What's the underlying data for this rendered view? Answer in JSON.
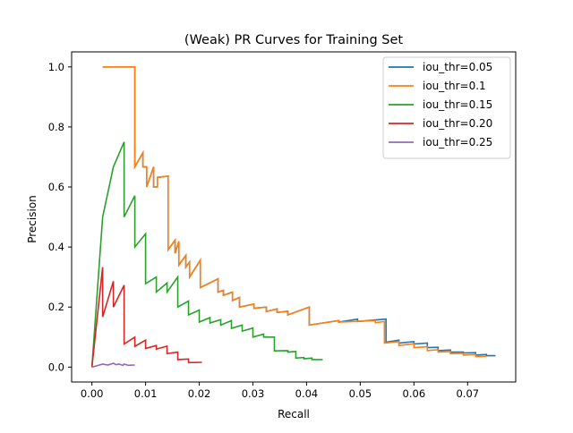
{
  "chart_data": {
    "type": "line",
    "title": "(Weak) PR Curves for Training Set",
    "xlabel": "Recall",
    "ylabel": "Precision",
    "xlim": [
      -0.00378,
      0.07896
    ],
    "ylim": [
      -0.0496,
      1.05
    ],
    "xticks": [
      0.0,
      0.01,
      0.02,
      0.03,
      0.04,
      0.05,
      0.06,
      0.07
    ],
    "xtick_labels": [
      "0.00",
      "0.01",
      "0.02",
      "0.03",
      "0.04",
      "0.05",
      "0.06",
      "0.07"
    ],
    "yticks": [
      0.0,
      0.2,
      0.4,
      0.6,
      0.8,
      1.0
    ],
    "ytick_labels": [
      "0.0",
      "0.2",
      "0.4",
      "0.6",
      "0.8",
      "1.0"
    ],
    "grid": false,
    "legend": "upper-right",
    "series": [
      {
        "name": "iou_thr=0.05",
        "color": "#1f77b4",
        "x": [
          0.002,
          0.008,
          0.008,
          0.0095,
          0.0095,
          0.0102,
          0.0102,
          0.0115,
          0.0115,
          0.0122,
          0.0122,
          0.0142,
          0.0142,
          0.0155,
          0.0155,
          0.0162,
          0.0162,
          0.0175,
          0.0175,
          0.0182,
          0.0182,
          0.0202,
          0.0202,
          0.0235,
          0.0235,
          0.0245,
          0.0245,
          0.0262,
          0.0262,
          0.0275,
          0.0275,
          0.0302,
          0.0302,
          0.0325,
          0.0325,
          0.0345,
          0.0345,
          0.0365,
          0.0365,
          0.0405,
          0.0405,
          0.046,
          0.046,
          0.0495,
          0.0495,
          0.0548,
          0.0548,
          0.0548,
          0.0548,
          0.0572,
          0.0572,
          0.06,
          0.06,
          0.0625,
          0.0625,
          0.0645,
          0.0645,
          0.0668,
          0.0668,
          0.0692,
          0.0692,
          0.0715,
          0.0715,
          0.0735,
          0.0735,
          0.0752
        ],
        "y": [
          1.0,
          1.0,
          0.667,
          0.714,
          0.667,
          0.667,
          0.6,
          0.667,
          0.6,
          0.6,
          0.632,
          0.636,
          0.391,
          0.423,
          0.379,
          0.419,
          0.34,
          0.372,
          0.333,
          0.35,
          0.3,
          0.356,
          0.265,
          0.294,
          0.25,
          0.256,
          0.239,
          0.25,
          0.222,
          0.232,
          0.2,
          0.21,
          0.196,
          0.2,
          0.185,
          0.194,
          0.182,
          0.186,
          0.174,
          0.2,
          0.14,
          0.155,
          0.15,
          0.16,
          0.152,
          0.16,
          0.16,
          0.16,
          0.083,
          0.09,
          0.08,
          0.085,
          0.077,
          0.08,
          0.065,
          0.066,
          0.055,
          0.057,
          0.05,
          0.05,
          0.047,
          0.048,
          0.04,
          0.042,
          0.038,
          0.038
        ]
      },
      {
        "name": "iou_thr=0.1",
        "color": "#ff7f0e",
        "x": [
          0.002,
          0.008,
          0.008,
          0.0095,
          0.0095,
          0.0102,
          0.0102,
          0.0115,
          0.0115,
          0.0122,
          0.0122,
          0.0142,
          0.0142,
          0.0155,
          0.0155,
          0.0162,
          0.0162,
          0.0175,
          0.0175,
          0.0182,
          0.0182,
          0.0202,
          0.0202,
          0.0235,
          0.0235,
          0.0245,
          0.0245,
          0.0262,
          0.0262,
          0.0275,
          0.0275,
          0.0302,
          0.0302,
          0.0325,
          0.0325,
          0.0345,
          0.0345,
          0.0365,
          0.0365,
          0.0405,
          0.0405,
          0.046,
          0.046,
          0.0528,
          0.0528,
          0.0545,
          0.0545,
          0.0572,
          0.0572,
          0.06,
          0.06,
          0.0625,
          0.0625,
          0.0645,
          0.0645,
          0.0668,
          0.0668,
          0.0692,
          0.0692,
          0.0715,
          0.0715,
          0.0735
        ],
        "y": [
          1.0,
          1.0,
          0.667,
          0.714,
          0.667,
          0.667,
          0.6,
          0.667,
          0.6,
          0.6,
          0.632,
          0.636,
          0.391,
          0.423,
          0.379,
          0.419,
          0.34,
          0.372,
          0.333,
          0.35,
          0.3,
          0.356,
          0.265,
          0.294,
          0.25,
          0.256,
          0.239,
          0.25,
          0.222,
          0.232,
          0.2,
          0.21,
          0.196,
          0.2,
          0.185,
          0.194,
          0.182,
          0.186,
          0.174,
          0.2,
          0.14,
          0.155,
          0.15,
          0.155,
          0.148,
          0.152,
          0.08,
          0.085,
          0.072,
          0.078,
          0.065,
          0.068,
          0.055,
          0.058,
          0.05,
          0.052,
          0.045,
          0.046,
          0.04,
          0.042,
          0.035,
          0.036
        ]
      },
      {
        "name": "iou_thr=0.15",
        "color": "#2ca02c",
        "x": [
          0.0,
          0.002,
          0.004,
          0.006,
          0.006,
          0.008,
          0.008,
          0.01,
          0.01,
          0.012,
          0.012,
          0.014,
          0.014,
          0.016,
          0.016,
          0.018,
          0.018,
          0.02,
          0.02,
          0.022,
          0.022,
          0.024,
          0.024,
          0.026,
          0.026,
          0.028,
          0.028,
          0.03,
          0.03,
          0.032,
          0.032,
          0.034,
          0.034,
          0.0365,
          0.0365,
          0.038,
          0.038,
          0.0395,
          0.0395,
          0.041,
          0.041,
          0.043
        ],
        "y": [
          0.0,
          0.5,
          0.667,
          0.75,
          0.5,
          0.571,
          0.4,
          0.444,
          0.278,
          0.3,
          0.25,
          0.28,
          0.25,
          0.3,
          0.2,
          0.22,
          0.174,
          0.19,
          0.15,
          0.165,
          0.147,
          0.158,
          0.14,
          0.155,
          0.129,
          0.14,
          0.12,
          0.13,
          0.1,
          0.11,
          0.1,
          0.1,
          0.054,
          0.055,
          0.05,
          0.052,
          0.03,
          0.032,
          0.028,
          0.03,
          0.025,
          0.025
        ]
      },
      {
        "name": "iou_thr=0.20",
        "color": "#d62728",
        "x": [
          0.0,
          0.002,
          0.002,
          0.004,
          0.004,
          0.006,
          0.006,
          0.008,
          0.008,
          0.01,
          0.01,
          0.012,
          0.012,
          0.014,
          0.014,
          0.016,
          0.016,
          0.018,
          0.018,
          0.0205
        ],
        "y": [
          0.0,
          0.333,
          0.167,
          0.286,
          0.2,
          0.273,
          0.077,
          0.1,
          0.069,
          0.09,
          0.062,
          0.072,
          0.06,
          0.07,
          0.045,
          0.05,
          0.025,
          0.027,
          0.015,
          0.016
        ]
      },
      {
        "name": "iou_thr=0.25",
        "color": "#9467bd",
        "x": [
          0.0,
          0.002,
          0.003,
          0.004,
          0.0045,
          0.005,
          0.0058,
          0.006,
          0.0068,
          0.008
        ],
        "y": [
          0.0,
          0.01,
          0.007,
          0.013,
          0.008,
          0.01,
          0.006,
          0.01,
          0.006,
          0.007
        ]
      }
    ]
  }
}
